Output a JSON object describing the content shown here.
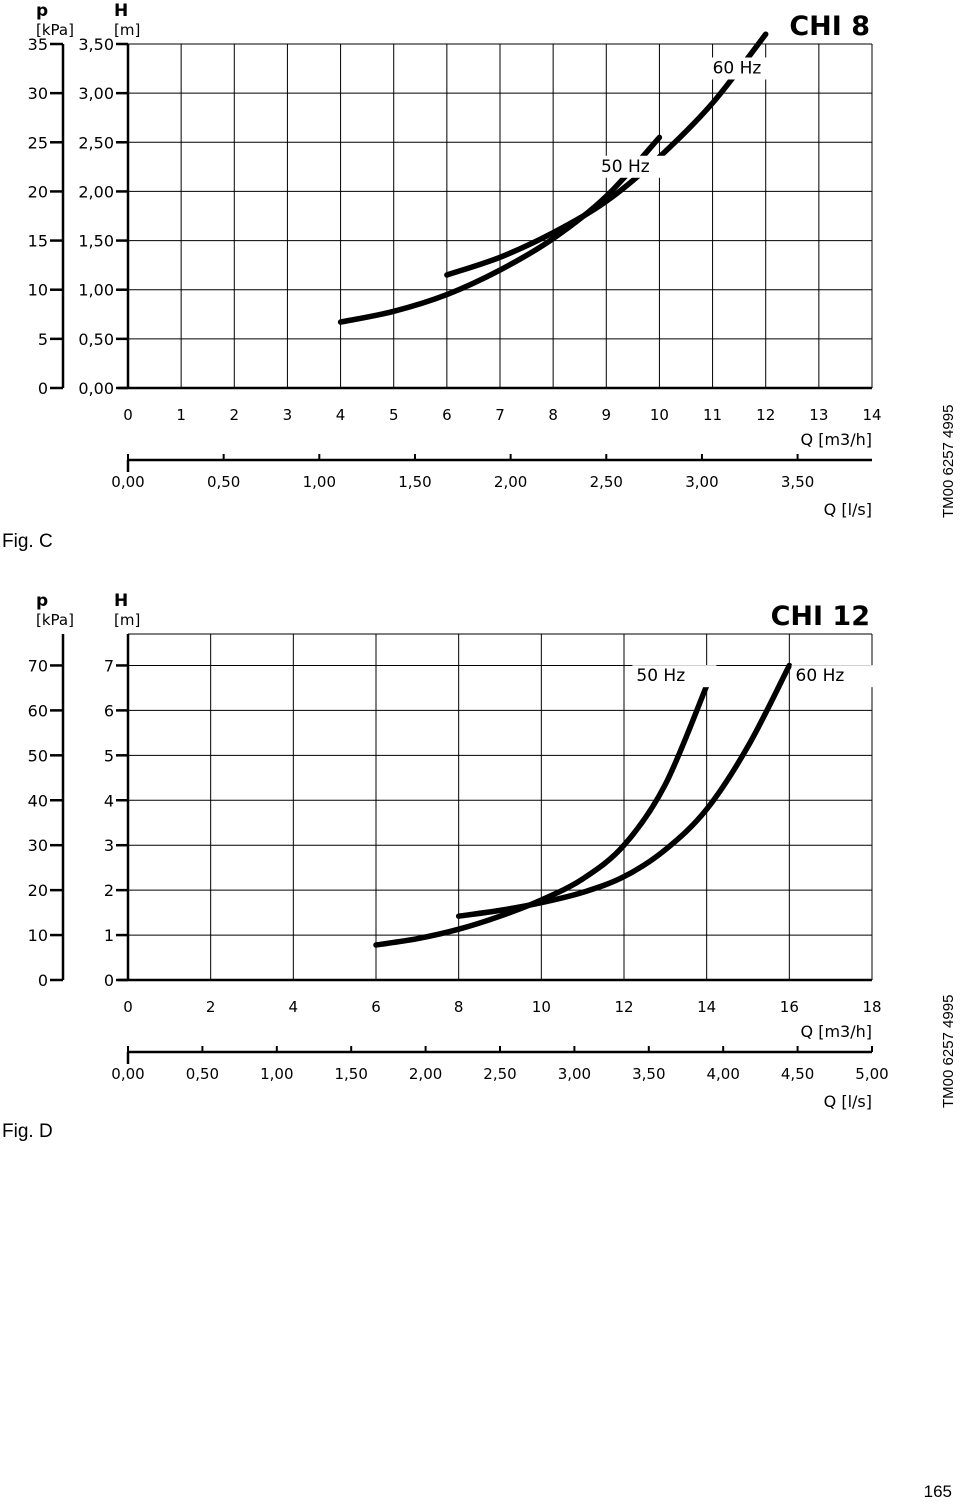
{
  "page_number": "165",
  "chart_data": [
    {
      "type": "line",
      "title": "CHI 8",
      "figure_label": "Fig. C",
      "code": "TM00 6257 4995",
      "left_axis_1": {
        "unit_symbol": "p",
        "unit": "[kPa]",
        "ticks": [
          "0",
          "5",
          "10",
          "15",
          "20",
          "25",
          "30",
          "35"
        ],
        "values": [
          0,
          5,
          10,
          15,
          20,
          25,
          30,
          35
        ]
      },
      "left_axis_2": {
        "unit_symbol": "H",
        "unit": "[m]",
        "ticks": [
          "0,00",
          "0,50",
          "1,00",
          "1,50",
          "2,00",
          "2,50",
          "3,00",
          "3,50"
        ],
        "values": [
          0,
          0.5,
          1.0,
          1.5,
          2.0,
          2.5,
          3.0,
          3.5
        ],
        "ylim": [
          0,
          3.5
        ]
      },
      "x_axis_1": {
        "label": "Q [m3/h]",
        "ticks": [
          "0",
          "1",
          "2",
          "3",
          "4",
          "5",
          "6",
          "7",
          "8",
          "9",
          "10",
          "11",
          "12",
          "13",
          "14"
        ],
        "values": [
          0,
          1,
          2,
          3,
          4,
          5,
          6,
          7,
          8,
          9,
          10,
          11,
          12,
          13,
          14
        ],
        "xlim": [
          0,
          14
        ]
      },
      "x_axis_2": {
        "label": "Q [l/s]",
        "ticks": [
          "0,00",
          "0,50",
          "1,00",
          "1,50",
          "2,00",
          "2,50",
          "3,00",
          "3,50"
        ],
        "values": [
          0,
          0.5,
          1.0,
          1.5,
          2.0,
          2.5,
          3.0,
          3.5
        ]
      },
      "grid": true,
      "series": [
        {
          "name": "50 Hz",
          "x": [
            4,
            5,
            6,
            7,
            8,
            9,
            10
          ],
          "y": [
            0.67,
            0.78,
            0.95,
            1.2,
            1.52,
            1.95,
            2.55
          ]
        },
        {
          "name": "60 Hz",
          "x": [
            6,
            7,
            8,
            9,
            10,
            11,
            12
          ],
          "y": [
            1.15,
            1.33,
            1.58,
            1.9,
            2.35,
            2.9,
            3.6
          ]
        }
      ],
      "series_labels": [
        {
          "text": "50 Hz",
          "x": 8.9,
          "y": 2.2
        },
        {
          "text": "60 Hz",
          "x": 11.0,
          "y": 3.2
        }
      ]
    },
    {
      "type": "line",
      "title": "CHI 12",
      "figure_label": "Fig. D",
      "code": "TM00 6257 4995",
      "left_axis_1": {
        "unit_symbol": "p",
        "unit": "[kPa]",
        "ticks": [
          "0",
          "10",
          "20",
          "30",
          "40",
          "50",
          "60",
          "70"
        ],
        "values": [
          0,
          10,
          20,
          30,
          40,
          50,
          60,
          70
        ]
      },
      "left_axis_2": {
        "unit_symbol": "H",
        "unit": "[m]",
        "ticks": [
          "0",
          "1",
          "2",
          "3",
          "4",
          "5",
          "6",
          "7"
        ],
        "values": [
          0,
          1,
          2,
          3,
          4,
          5,
          6,
          7
        ],
        "ylim": [
          0,
          7.7
        ]
      },
      "x_axis_1": {
        "label": "Q [m3/h]",
        "ticks": [
          "0",
          "2",
          "4",
          "6",
          "8",
          "10",
          "12",
          "14",
          "16",
          "18"
        ],
        "values": [
          0,
          2,
          4,
          6,
          8,
          10,
          12,
          14,
          16,
          18
        ],
        "xlim": [
          0,
          18
        ]
      },
      "x_axis_2": {
        "label": "Q [l/s]",
        "ticks": [
          "0,00",
          "0,50",
          "1,00",
          "1,50",
          "2,00",
          "2,50",
          "3,00",
          "3,50",
          "4,00",
          "4,50",
          "5,00"
        ],
        "values": [
          0,
          0.5,
          1.0,
          1.5,
          2.0,
          2.5,
          3.0,
          3.5,
          4.0,
          4.5,
          5.0
        ]
      },
      "grid": true,
      "series": [
        {
          "name": "50 Hz",
          "x": [
            6,
            7,
            8,
            9,
            10,
            11,
            12,
            13,
            14
          ],
          "y": [
            0.78,
            0.92,
            1.13,
            1.42,
            1.78,
            2.25,
            3.0,
            4.35,
            6.55
          ]
        },
        {
          "name": "60 Hz",
          "x": [
            8,
            9,
            10,
            11,
            12,
            13,
            14,
            15,
            16
          ],
          "y": [
            1.42,
            1.55,
            1.72,
            1.95,
            2.3,
            2.9,
            3.8,
            5.2,
            7.0
          ]
        }
      ],
      "series_labels": [
        {
          "text": "50 Hz",
          "x": 12.3,
          "y": 6.65
        },
        {
          "text": "60 Hz",
          "x": 16.15,
          "y": 6.65
        }
      ]
    }
  ]
}
